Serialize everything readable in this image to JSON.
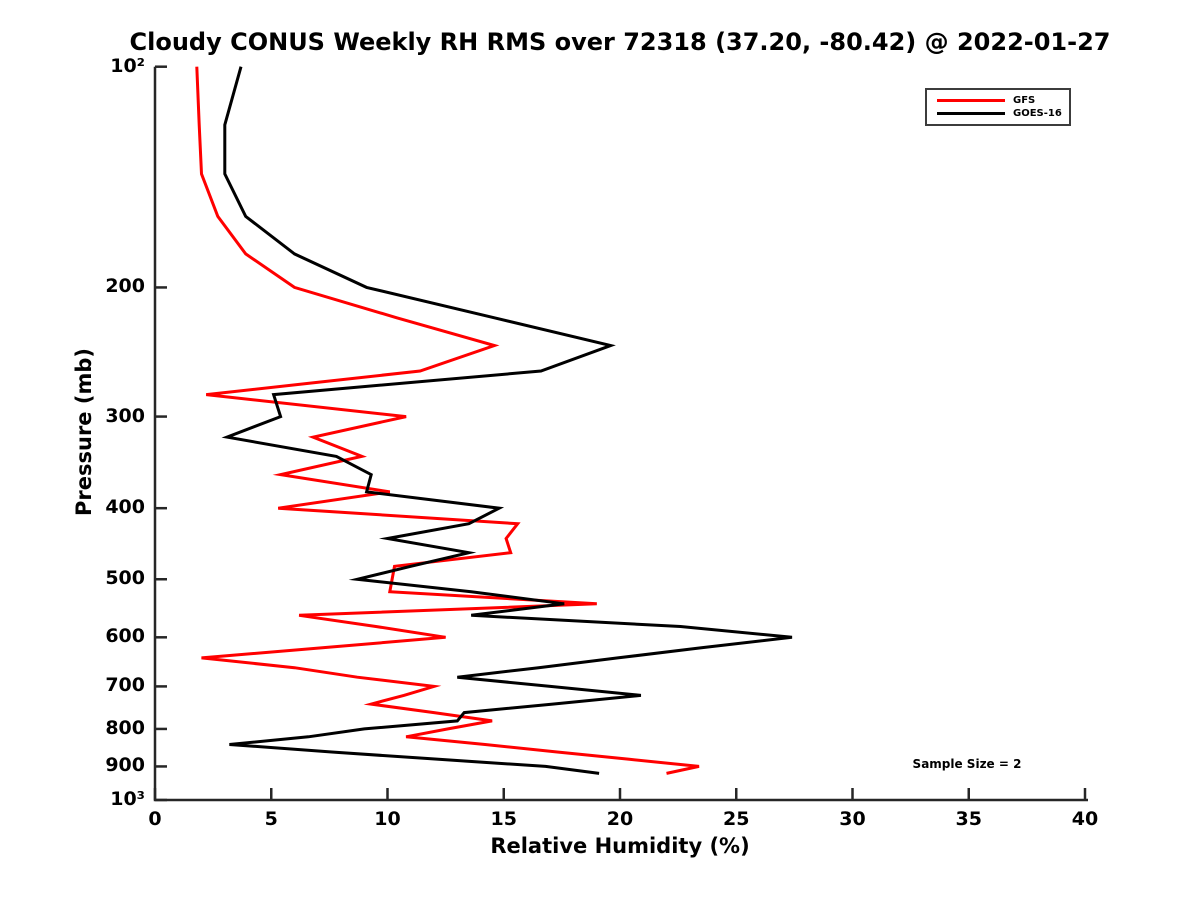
{
  "chart_data": {
    "type": "line",
    "title": "Cloudy CONUS Weekly RH RMS over 72318 (37.20, -80.42) @ 2022-01-27",
    "xlabel": "Relative Humidity (%)",
    "ylabel": "Pressure (mb)",
    "annotation": "Sample Size = 2",
    "xlim": [
      0,
      40
    ],
    "ylim": [
      100,
      1000
    ],
    "y_scale": "log",
    "y_inverted": true,
    "grid": false,
    "legend_position": "top-right",
    "x_ticks": [
      0,
      5,
      10,
      15,
      20,
      25,
      30,
      35,
      40
    ],
    "y_ticks": [
      {
        "value": 100,
        "label": "10²"
      },
      {
        "value": 200,
        "label": "200"
      },
      {
        "value": 300,
        "label": "300"
      },
      {
        "value": 400,
        "label": "400"
      },
      {
        "value": 500,
        "label": "500"
      },
      {
        "value": 600,
        "label": "600"
      },
      {
        "value": 700,
        "label": "700"
      },
      {
        "value": 800,
        "label": "800"
      },
      {
        "value": 900,
        "label": "900"
      },
      {
        "value": 1000,
        "label": "10³"
      }
    ],
    "axis_color": "#262626",
    "pressure_levels": [
      100,
      120,
      140,
      160,
      180,
      200,
      220,
      240,
      260,
      280,
      300,
      320,
      340,
      360,
      380,
      400,
      420,
      440,
      460,
      480,
      500,
      520,
      540,
      560,
      580,
      600,
      620,
      640,
      660,
      680,
      700,
      720,
      740,
      760,
      780,
      800,
      820,
      840,
      860,
      880,
      900,
      920
    ],
    "series": [
      {
        "name": "GFS",
        "color": "#ff0000",
        "values": [
          1.8,
          1.9,
          2.0,
          2.7,
          3.9,
          6.0,
          10.4,
          14.6,
          11.4,
          2.2,
          10.8,
          6.8,
          8.9,
          5.4,
          10.1,
          5.3,
          15.6,
          15.1,
          15.3,
          10.3,
          10.2,
          10.1,
          19.0,
          6.2,
          9.5,
          12.5,
          7.2,
          2.0,
          6.0,
          8.7,
          12.0,
          10.7,
          9.3,
          12.0,
          14.5,
          12.6,
          10.8,
          14.2,
          17.3,
          20.4,
          23.4,
          22.0
        ]
      },
      {
        "name": "GOES-16",
        "color": "#000000",
        "values": [
          3.7,
          3.0,
          3.0,
          3.9,
          6.0,
          9.1,
          14.6,
          19.6,
          16.6,
          5.1,
          5.4,
          3.1,
          7.8,
          9.3,
          9.1,
          14.8,
          13.5,
          10.0,
          13.5,
          11.0,
          8.7,
          13.6,
          17.6,
          13.6,
          22.6,
          27.4,
          23.5,
          19.9,
          16.5,
          13.0,
          17.0,
          20.9,
          17.1,
          13.3,
          13.0,
          9.0,
          6.6,
          3.2,
          7.6,
          12.2,
          16.8,
          19.1
        ]
      }
    ]
  }
}
